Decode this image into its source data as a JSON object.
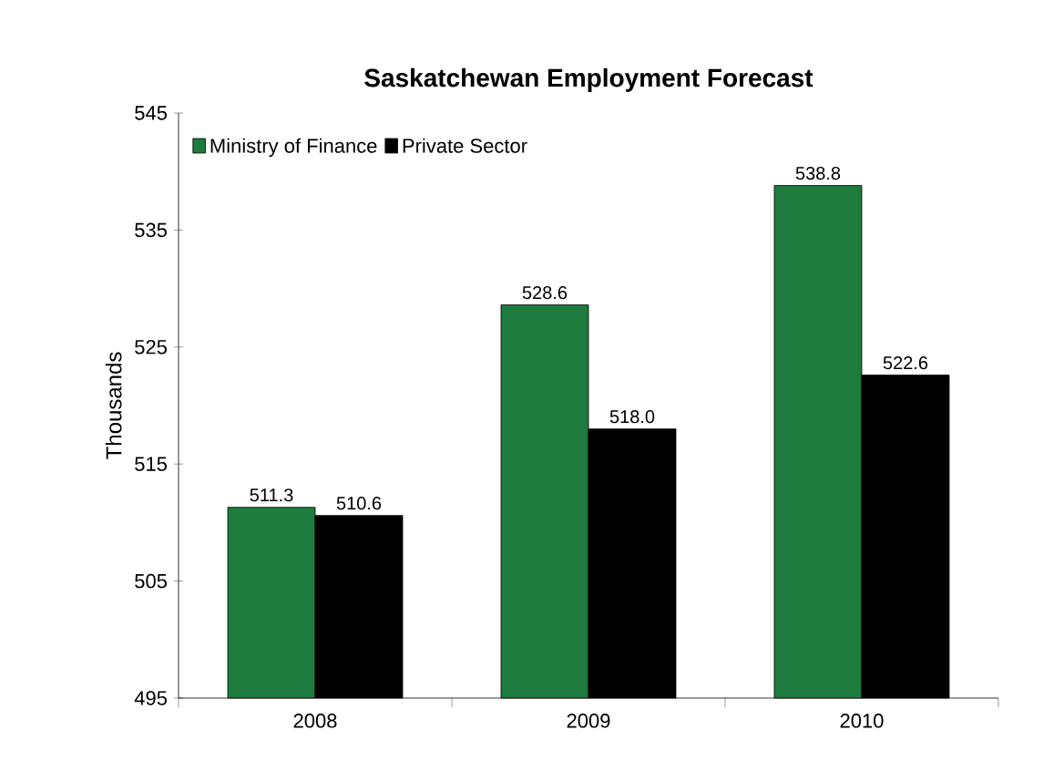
{
  "chart_data": {
    "type": "bar",
    "title": "Saskatchewan Employment Forecast",
    "ylabel": "Thousands",
    "categories": [
      "2008",
      "2009",
      "2010"
    ],
    "series": [
      {
        "name": "Ministry of Finance",
        "color": "#1e7b3e",
        "values": [
          511.3,
          528.6,
          538.8
        ],
        "value_labels": [
          "511.3",
          "528.6",
          "538.8"
        ]
      },
      {
        "name": "Private Sector",
        "color": "#000000",
        "values": [
          510.6,
          518.0,
          522.6
        ],
        "value_labels": [
          "510.6",
          "518.0",
          "522.6"
        ]
      }
    ],
    "ylim": [
      495,
      545
    ],
    "yticks": [
      495,
      505,
      515,
      525,
      535,
      545
    ],
    "grid": false,
    "legend": "top left"
  }
}
